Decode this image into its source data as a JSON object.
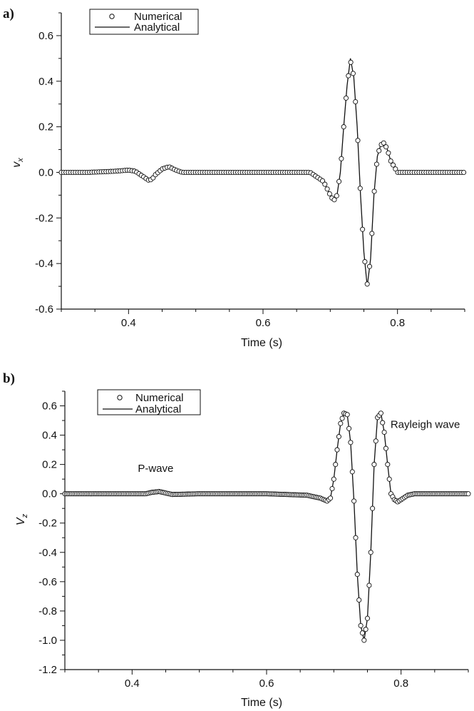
{
  "chart_data": [
    {
      "type": "line",
      "panel_label": "a)",
      "xlabel": "Time (s)",
      "ylabel_main": "v",
      "ylabel_sub": "x",
      "xlim": [
        0.3,
        0.9
      ],
      "ylim": [
        -0.6,
        0.7
      ],
      "x_ticks": [
        0.4,
        0.6,
        0.8
      ],
      "x_tick_labels": [
        "0.4",
        "0.6",
        "0.8"
      ],
      "y_ticks": [
        -0.6,
        -0.4,
        -0.2,
        0.0,
        0.2,
        0.4,
        0.6
      ],
      "y_tick_labels": [
        "-0.6",
        "-0.4",
        "-0.2",
        "0.0",
        "0.2",
        "0.4",
        "0.6"
      ],
      "grid": false,
      "legend_position": "top-left",
      "series": [
        {
          "name": "Numerical",
          "style": "circle-markers",
          "x": [
            0.3,
            0.34,
            0.38,
            0.4,
            0.41,
            0.42,
            0.43,
            0.435,
            0.44,
            0.45,
            0.46,
            0.47,
            0.48,
            0.5,
            0.55,
            0.6,
            0.65,
            0.67,
            0.69,
            0.7,
            0.705,
            0.71,
            0.715,
            0.72,
            0.725,
            0.73,
            0.735,
            0.74,
            0.745,
            0.75,
            0.755,
            0.76,
            0.765,
            0.77,
            0.775,
            0.78,
            0.785,
            0.79,
            0.8,
            0.82,
            0.85,
            0.9
          ],
          "y": [
            0.0,
            0.0,
            0.005,
            0.01,
            0.005,
            -0.015,
            -0.035,
            -0.03,
            -0.01,
            0.015,
            0.025,
            0.01,
            0.0,
            0.0,
            0.0,
            0.0,
            0.0,
            0.0,
            -0.04,
            -0.1,
            -0.125,
            -0.1,
            0.0,
            0.2,
            0.38,
            0.49,
            0.42,
            0.2,
            -0.1,
            -0.35,
            -0.49,
            -0.38,
            -0.1,
            0.07,
            0.12,
            0.13,
            0.1,
            0.05,
            0.0,
            0.0,
            0.0,
            0.0
          ]
        },
        {
          "name": "Analytical",
          "style": "solid-line",
          "x": [
            0.3,
            0.34,
            0.38,
            0.4,
            0.41,
            0.42,
            0.43,
            0.435,
            0.44,
            0.45,
            0.46,
            0.47,
            0.48,
            0.5,
            0.55,
            0.6,
            0.65,
            0.67,
            0.69,
            0.7,
            0.705,
            0.71,
            0.715,
            0.72,
            0.725,
            0.73,
            0.735,
            0.74,
            0.745,
            0.75,
            0.755,
            0.76,
            0.765,
            0.77,
            0.775,
            0.78,
            0.785,
            0.79,
            0.8,
            0.82,
            0.85,
            0.9
          ],
          "y": [
            0.0,
            0.0,
            0.005,
            0.01,
            0.005,
            -0.015,
            -0.035,
            -0.03,
            -0.01,
            0.015,
            0.025,
            0.01,
            0.0,
            0.0,
            0.0,
            0.0,
            0.0,
            0.0,
            -0.04,
            -0.1,
            -0.125,
            -0.1,
            0.0,
            0.2,
            0.38,
            0.5,
            0.42,
            0.2,
            -0.1,
            -0.35,
            -0.5,
            -0.38,
            -0.1,
            0.07,
            0.12,
            0.13,
            0.1,
            0.05,
            0.0,
            0.0,
            0.0,
            0.0
          ]
        }
      ],
      "annotations": []
    },
    {
      "type": "line",
      "panel_label": "b)",
      "xlabel": "Time (s)",
      "ylabel_main": "V",
      "ylabel_sub": "z",
      "xlim": [
        0.3,
        0.9
      ],
      "ylim": [
        -1.2,
        0.7
      ],
      "x_ticks": [
        0.4,
        0.6,
        0.8
      ],
      "x_tick_labels": [
        "0.4",
        "0.6",
        "0.8"
      ],
      "y_ticks": [
        -1.2,
        -1.0,
        -0.8,
        -0.6,
        -0.4,
        -0.2,
        0.0,
        0.2,
        0.4,
        0.6
      ],
      "y_tick_labels": [
        "-1.2",
        "-1.0",
        "-0.8",
        "-0.6",
        "-0.4",
        "-0.2",
        "0.0",
        "0.2",
        "0.4",
        "0.6"
      ],
      "grid": false,
      "legend_position": "top-left",
      "series": [
        {
          "name": "Numerical",
          "style": "circle-markers",
          "x": [
            0.3,
            0.34,
            0.38,
            0.42,
            0.43,
            0.44,
            0.45,
            0.46,
            0.5,
            0.6,
            0.66,
            0.68,
            0.69,
            0.695,
            0.7,
            0.705,
            0.71,
            0.715,
            0.72,
            0.725,
            0.73,
            0.735,
            0.74,
            0.745,
            0.75,
            0.755,
            0.76,
            0.765,
            0.77,
            0.775,
            0.78,
            0.785,
            0.79,
            0.795,
            0.8,
            0.81,
            0.82,
            0.85,
            0.9
          ],
          "y": [
            0.0,
            0.0,
            0.0,
            0.0,
            0.01,
            0.015,
            0.005,
            -0.005,
            0.0,
            0.0,
            -0.01,
            -0.03,
            -0.05,
            -0.03,
            0.1,
            0.3,
            0.48,
            0.55,
            0.54,
            0.35,
            -0.05,
            -0.55,
            -0.9,
            -1.0,
            -0.85,
            -0.4,
            0.2,
            0.52,
            0.55,
            0.42,
            0.2,
            0.0,
            -0.04,
            -0.055,
            -0.04,
            -0.01,
            0.0,
            0.0,
            0.0
          ]
        },
        {
          "name": "Analytical",
          "style": "solid-line",
          "x": [
            0.3,
            0.34,
            0.38,
            0.42,
            0.43,
            0.44,
            0.45,
            0.46,
            0.5,
            0.6,
            0.66,
            0.68,
            0.69,
            0.695,
            0.7,
            0.705,
            0.71,
            0.715,
            0.72,
            0.725,
            0.73,
            0.735,
            0.74,
            0.745,
            0.75,
            0.755,
            0.76,
            0.765,
            0.77,
            0.775,
            0.78,
            0.785,
            0.79,
            0.795,
            0.8,
            0.81,
            0.82,
            0.85,
            0.9
          ],
          "y": [
            0.0,
            0.0,
            0.0,
            0.0,
            0.01,
            0.015,
            0.005,
            -0.005,
            0.0,
            0.0,
            -0.01,
            -0.03,
            -0.05,
            -0.03,
            0.1,
            0.3,
            0.48,
            0.55,
            0.54,
            0.35,
            -0.05,
            -0.55,
            -0.9,
            -1.0,
            -0.85,
            -0.4,
            0.2,
            0.52,
            0.55,
            0.42,
            0.2,
            0.0,
            -0.04,
            -0.055,
            -0.04,
            -0.01,
            0.0,
            0.0,
            0.0
          ]
        }
      ],
      "annotations": [
        {
          "text": "P-wave",
          "x": 0.435,
          "y": 0.15
        },
        {
          "text": "Rayleigh wave",
          "x": 0.836,
          "y": 0.45
        }
      ]
    }
  ],
  "colors": {
    "ink": "#111111",
    "background": "#ffffff"
  }
}
